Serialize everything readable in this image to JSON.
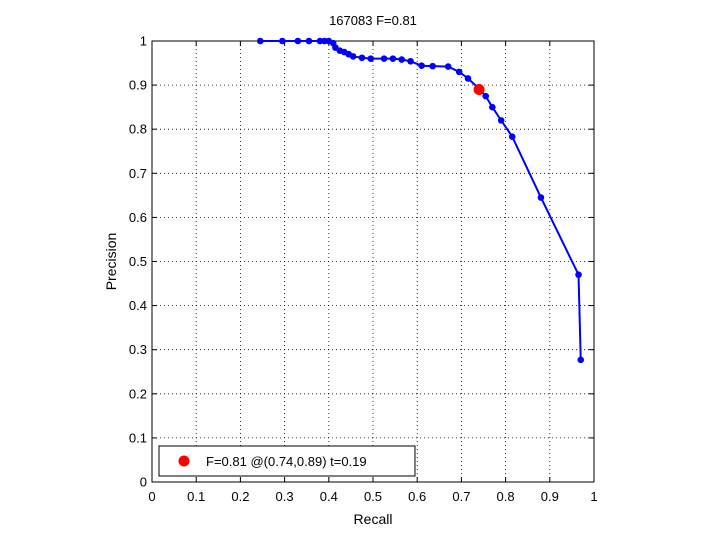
{
  "chart_data": {
    "type": "line",
    "title": "167083 F=0.81",
    "xlabel": "Recall",
    "ylabel": "Precision",
    "xlim": [
      0,
      1
    ],
    "ylim": [
      0,
      1
    ],
    "grid": true,
    "x_ticks": [
      "0",
      "0.1",
      "0.2",
      "0.3",
      "0.4",
      "0.5",
      "0.6",
      "0.7",
      "0.8",
      "0.9",
      "1"
    ],
    "y_ticks": [
      "0",
      "0.1",
      "0.2",
      "0.3",
      "0.4",
      "0.5",
      "0.6",
      "0.7",
      "0.8",
      "0.9",
      "1"
    ],
    "series": [
      {
        "color": "#0000ff",
        "marker": "filled-circle",
        "points": [
          [
            0.245,
            1.0
          ],
          [
            0.295,
            1.0
          ],
          [
            0.33,
            1.0
          ],
          [
            0.355,
            1.0
          ],
          [
            0.38,
            1.0
          ],
          [
            0.39,
            1.0
          ],
          [
            0.4,
            1.0
          ],
          [
            0.41,
            0.995
          ],
          [
            0.415,
            0.985
          ],
          [
            0.425,
            0.978
          ],
          [
            0.435,
            0.975
          ],
          [
            0.445,
            0.97
          ],
          [
            0.455,
            0.965
          ],
          [
            0.475,
            0.962
          ],
          [
            0.495,
            0.96
          ],
          [
            0.525,
            0.96
          ],
          [
            0.545,
            0.96
          ],
          [
            0.565,
            0.958
          ],
          [
            0.585,
            0.954
          ],
          [
            0.61,
            0.944
          ],
          [
            0.635,
            0.943
          ],
          [
            0.67,
            0.942
          ],
          [
            0.695,
            0.93
          ],
          [
            0.715,
            0.915
          ],
          [
            0.74,
            0.892
          ],
          [
            0.755,
            0.875
          ],
          [
            0.77,
            0.85
          ],
          [
            0.79,
            0.82
          ],
          [
            0.815,
            0.783
          ],
          [
            0.88,
            0.645
          ],
          [
            0.965,
            0.47
          ],
          [
            0.97,
            0.277
          ]
        ]
      }
    ],
    "highlight_point": {
      "x": 0.74,
      "y": 0.89,
      "color": "#ff0000"
    },
    "legend": {
      "position": "bottom-left",
      "label": "F=0.81 @(0.74,0.89) t=0.19"
    }
  }
}
